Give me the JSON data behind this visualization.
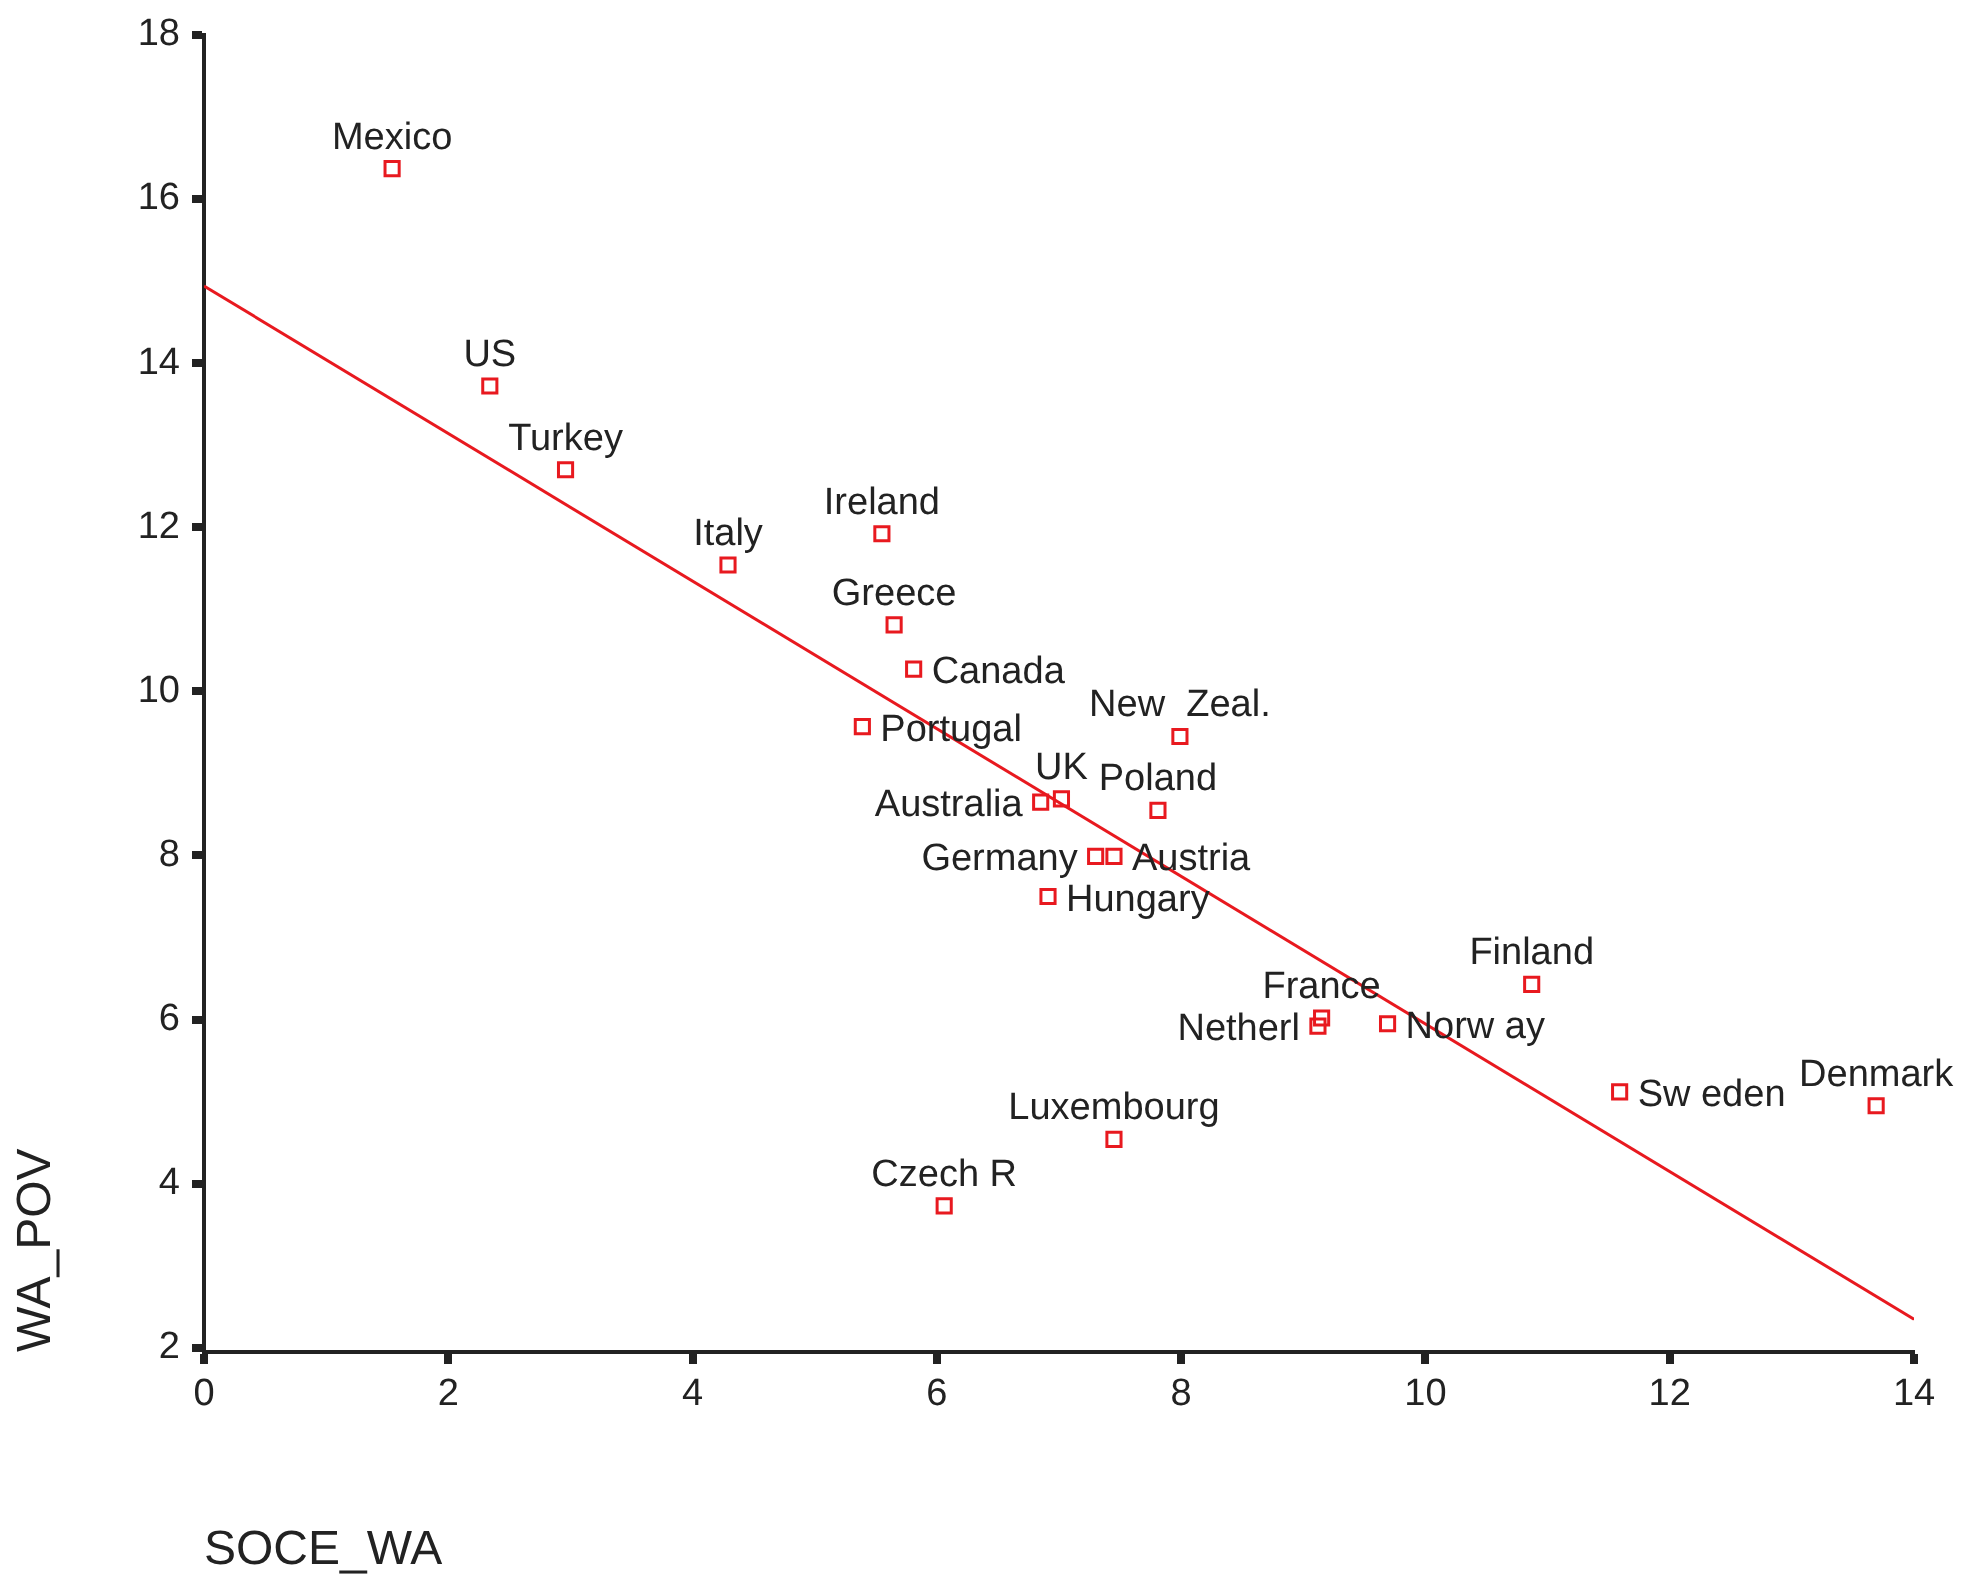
{
  "chart_data": {
    "type": "scatter",
    "xlabel": "SOCE_WA",
    "ylabel": "WA_POV",
    "xlim": [
      0,
      14
    ],
    "xticks": [
      0,
      2,
      4,
      6,
      8,
      10,
      12,
      14
    ],
    "ylim": [
      1.95,
      18
    ],
    "yticks": [
      2,
      4,
      6,
      8,
      10,
      12,
      14,
      16,
      18
    ],
    "grid": false,
    "legend": false,
    "marker": "square",
    "series": [
      {
        "color": "#e8191f",
        "x": [
          1.54,
          2.34,
          2.96,
          4.29,
          5.55,
          5.65,
          5.81,
          5.39,
          7.99,
          7.02,
          6.85,
          7.81,
          7.3,
          7.45,
          6.91,
          9.15,
          9.12,
          9.69,
          10.87,
          11.59,
          13.69,
          7.45,
          6.06
        ],
        "values": [
          16.37,
          13.72,
          12.7,
          11.54,
          11.92,
          10.81,
          10.27,
          9.57,
          9.45,
          8.69,
          8.65,
          8.55,
          7.99,
          7.99,
          7.5,
          6.02,
          5.92,
          5.95,
          6.43,
          5.12,
          4.95,
          4.54,
          3.73
        ]
      },
      {
        "type": "line",
        "color": "#e8191f",
        "marker": "none",
        "x": [
          0,
          14
        ],
        "values": [
          14.94,
          2.35
        ]
      }
    ],
    "annotations": [
      {
        "text": "Mexico",
        "x": 1.54,
        "y": 16.37
      },
      {
        "text": "US",
        "x": 2.34,
        "y": 13.72
      },
      {
        "text": "Turkey",
        "x": 2.96,
        "y": 12.7
      },
      {
        "text": "Italy",
        "x": 4.29,
        "y": 11.54
      },
      {
        "text": "Ireland",
        "x": 5.55,
        "y": 11.92
      },
      {
        "text": "Greece",
        "x": 5.65,
        "y": 10.81
      },
      {
        "text": "Canada",
        "x": 5.81,
        "y": 10.27
      },
      {
        "text": "Portugal",
        "x": 5.39,
        "y": 9.57
      },
      {
        "text": "New  Zeal.",
        "x": 7.99,
        "y": 9.45
      },
      {
        "text": "UK",
        "x": 7.02,
        "y": 8.69
      },
      {
        "text": "Australia",
        "x": 6.85,
        "y": 8.65
      },
      {
        "text": "Poland",
        "x": 7.81,
        "y": 8.55
      },
      {
        "text": "Germany",
        "x": 7.3,
        "y": 7.99
      },
      {
        "text": "Austria",
        "x": 7.45,
        "y": 7.99
      },
      {
        "text": "Hungary",
        "x": 6.91,
        "y": 7.5
      },
      {
        "text": "France",
        "x": 9.15,
        "y": 6.02
      },
      {
        "text": "Netherl",
        "x": 9.12,
        "y": 5.92
      },
      {
        "text": "Norw ay",
        "x": 9.69,
        "y": 5.95
      },
      {
        "text": "Finland",
        "x": 10.87,
        "y": 6.43
      },
      {
        "text": "Sw eden",
        "x": 11.59,
        "y": 5.12
      },
      {
        "text": "Denmark",
        "x": 13.69,
        "y": 4.95
      },
      {
        "text": "Luxembourg",
        "x": 7.45,
        "y": 4.54
      },
      {
        "text": "Czech R",
        "x": 6.06,
        "y": 3.73
      }
    ]
  }
}
